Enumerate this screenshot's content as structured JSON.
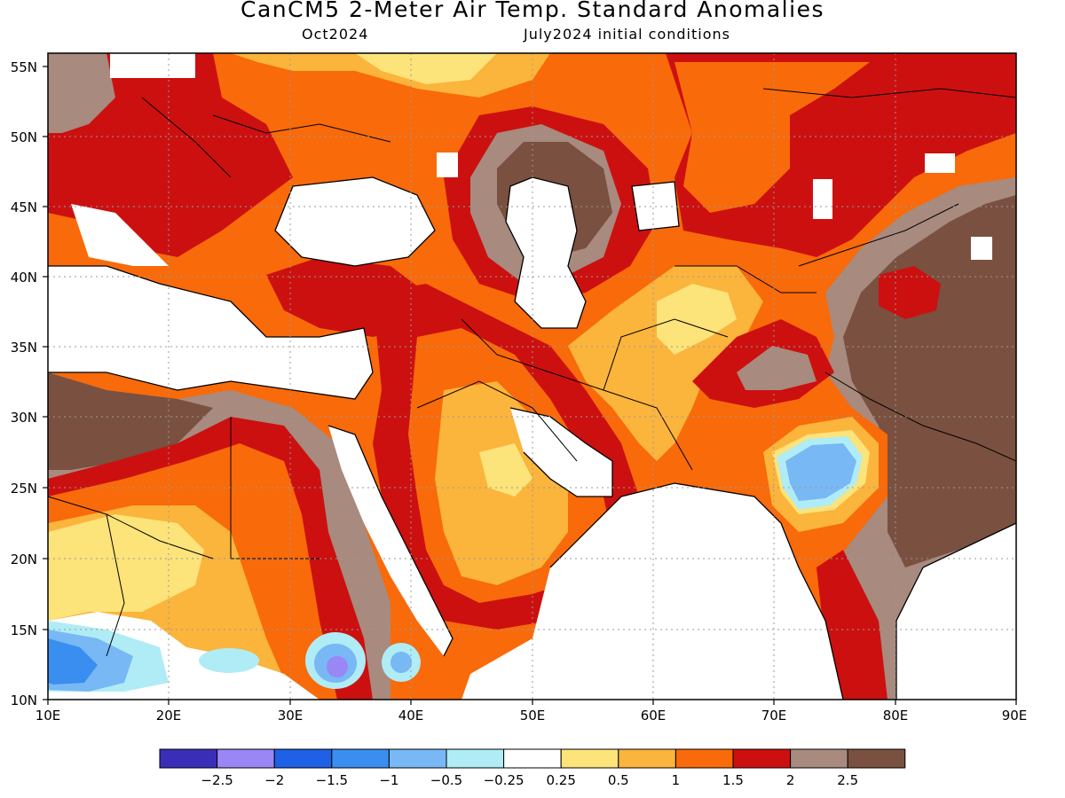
{
  "title": "CanCM5 2-Meter Air Temp. Standard Anomalies",
  "subtitle_left": "Oct2024",
  "subtitle_right": "July2024 initial conditions",
  "lat_labels": [
    "55N",
    "50N",
    "45N",
    "40N",
    "35N",
    "30N",
    "25N",
    "20N",
    "15N",
    "10N"
  ],
  "lon_labels": [
    "10E",
    "20E",
    "30E",
    "40E",
    "50E",
    "60E",
    "70E",
    "80E",
    "90E"
  ],
  "legend": {
    "colors": [
      "#3a2eb8",
      "#9a86f5",
      "#1e60e6",
      "#3a8ef0",
      "#78b8f5",
      "#b0ecf5",
      "#ffffff",
      "#fce37a",
      "#fbb43c",
      "#f86a0a",
      "#cc1010",
      "#a88a7e",
      "#7a5040"
    ],
    "labels": [
      "−2.5",
      "−2",
      "−1.5",
      "−1",
      "−0.5",
      "−0.25",
      "0.25",
      "0.5",
      "1",
      "1.5",
      "2",
      "2.5"
    ]
  },
  "colors": {
    "very_high": "#7a5040",
    "high": "#a88a7e",
    "dark_red": "#cc1010",
    "orange": "#f86a0a",
    "light_orange": "#fbb43c",
    "yellow": "#fce37a",
    "pale_blue": "#b0ecf5",
    "blue": "#78b8f5",
    "mid_blue": "#3a8ef0",
    "purple": "#9a86f5"
  }
}
